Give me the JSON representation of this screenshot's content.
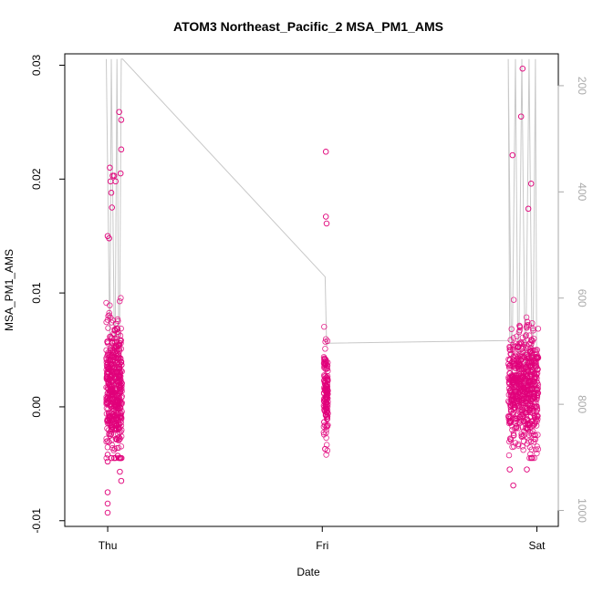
{
  "chart_data": {
    "type": "scatter",
    "title": "ATOM3 Northeast_Pacific_2 MSA_PM1_AMS",
    "xlabel": "Date",
    "ylabel": "MSA_PM1_AMS",
    "x_ticks": [
      "Thu",
      "Fri",
      "Sat"
    ],
    "y_ticks": [
      "-0.01",
      "0.00",
      "0.01",
      "0.02",
      "0.03"
    ],
    "ylim": [
      -0.0105,
      0.031
    ],
    "y2_ticks": [
      "200",
      "400",
      "600",
      "800",
      "1000"
    ],
    "y2lim": [
      1030,
      140
    ],
    "y2_reversed": true,
    "grid": false,
    "marker_color": "#e0007a",
    "line_color": "#c8c8c8",
    "series": [
      {
        "values": [
          {
            "x": 0.0,
            "y": -0.0093
          },
          {
            "x": 0.0,
            "y": -0.0085
          },
          {
            "x": 0.0,
            "y": -0.0075
          },
          {
            "x": 0.0,
            "y": -0.0048
          },
          {
            "x": 0.0,
            "y": -0.0042
          },
          {
            "x": 0.0,
            "y": 0.015
          },
          {
            "x": 0.02,
            "y": 0.0148
          },
          {
            "x": 0.03,
            "y": 0.021
          },
          {
            "x": 0.04,
            "y": 0.0198
          },
          {
            "x": 0.05,
            "y": 0.0188
          },
          {
            "x": 0.06,
            "y": 0.0175
          },
          {
            "x": 0.07,
            "y": 0.0203
          },
          {
            "x": 0.09,
            "y": 0.0203
          },
          {
            "x": 0.11,
            "y": 0.0198
          },
          {
            "x": 0.16,
            "y": 0.0259
          },
          {
            "x": 0.19,
            "y": 0.0252
          },
          {
            "x": 0.19,
            "y": 0.0226
          },
          {
            "x": 0.18,
            "y": 0.0205
          },
          {
            "x": 0.14,
            "y": -0.0043
          },
          {
            "x": 0.17,
            "y": -0.0057
          },
          {
            "x": 0.19,
            "y": -0.0065
          },
          {
            "x": 3.05,
            "y": 0.0224
          },
          {
            "x": 3.05,
            "y": 0.0167
          },
          {
            "x": 3.06,
            "y": 0.0161
          },
          {
            "x": 3.04,
            "y": -0.0037
          },
          {
            "x": 5.66,
            "y": 0.0221
          },
          {
            "x": 5.8,
            "y": 0.0297
          },
          {
            "x": 5.78,
            "y": 0.0255
          },
          {
            "x": 5.92,
            "y": 0.0196
          },
          {
            "x": 5.88,
            "y": 0.0174
          },
          {
            "x": 5.62,
            "y": -0.0055
          },
          {
            "x": 5.67,
            "y": -0.0069
          },
          {
            "x": 5.86,
            "y": -0.0055
          }
        ],
        "clusters": [
          {
            "x_range": [
              -0.02,
              0.2
            ],
            "median": 0.0015,
            "sd": 0.0028,
            "n": 520
          },
          {
            "x_range": [
              3.02,
              3.08
            ],
            "median": 0.0012,
            "sd": 0.0019,
            "n": 150
          },
          {
            "x_range": [
              5.6,
              6.02
            ],
            "median": 0.0015,
            "sd": 0.0025,
            "n": 650
          }
        ]
      }
    ],
    "pressure_line": {
      "axis": "y2",
      "values": [
        {
          "x": -0.02,
          "y": 150
        },
        {
          "x": 0.03,
          "y": 700
        },
        {
          "x": 0.05,
          "y": 150
        },
        {
          "x": 0.1,
          "y": 780
        },
        {
          "x": 0.13,
          "y": 150
        },
        {
          "x": 0.16,
          "y": 820
        },
        {
          "x": 0.19,
          "y": 150
        },
        {
          "x": 0.21,
          "y": 150
        },
        {
          "x": 3.04,
          "y": 560
        },
        {
          "x": 3.06,
          "y": 690
        },
        {
          "x": 3.08,
          "y": 685
        },
        {
          "x": 5.62,
          "y": 680
        },
        {
          "x": 5.6,
          "y": 150
        },
        {
          "x": 5.65,
          "y": 780
        },
        {
          "x": 5.7,
          "y": 150
        },
        {
          "x": 5.74,
          "y": 800
        },
        {
          "x": 5.79,
          "y": 150
        },
        {
          "x": 5.84,
          "y": 790
        },
        {
          "x": 5.89,
          "y": 150
        },
        {
          "x": 5.94,
          "y": 810
        },
        {
          "x": 5.98,
          "y": 150
        },
        {
          "x": 6.0,
          "y": 810
        }
      ]
    },
    "x_tick_positions": [
      0.0,
      3.0,
      6.0
    ],
    "xlim": [
      -0.6,
      6.3
    ]
  }
}
